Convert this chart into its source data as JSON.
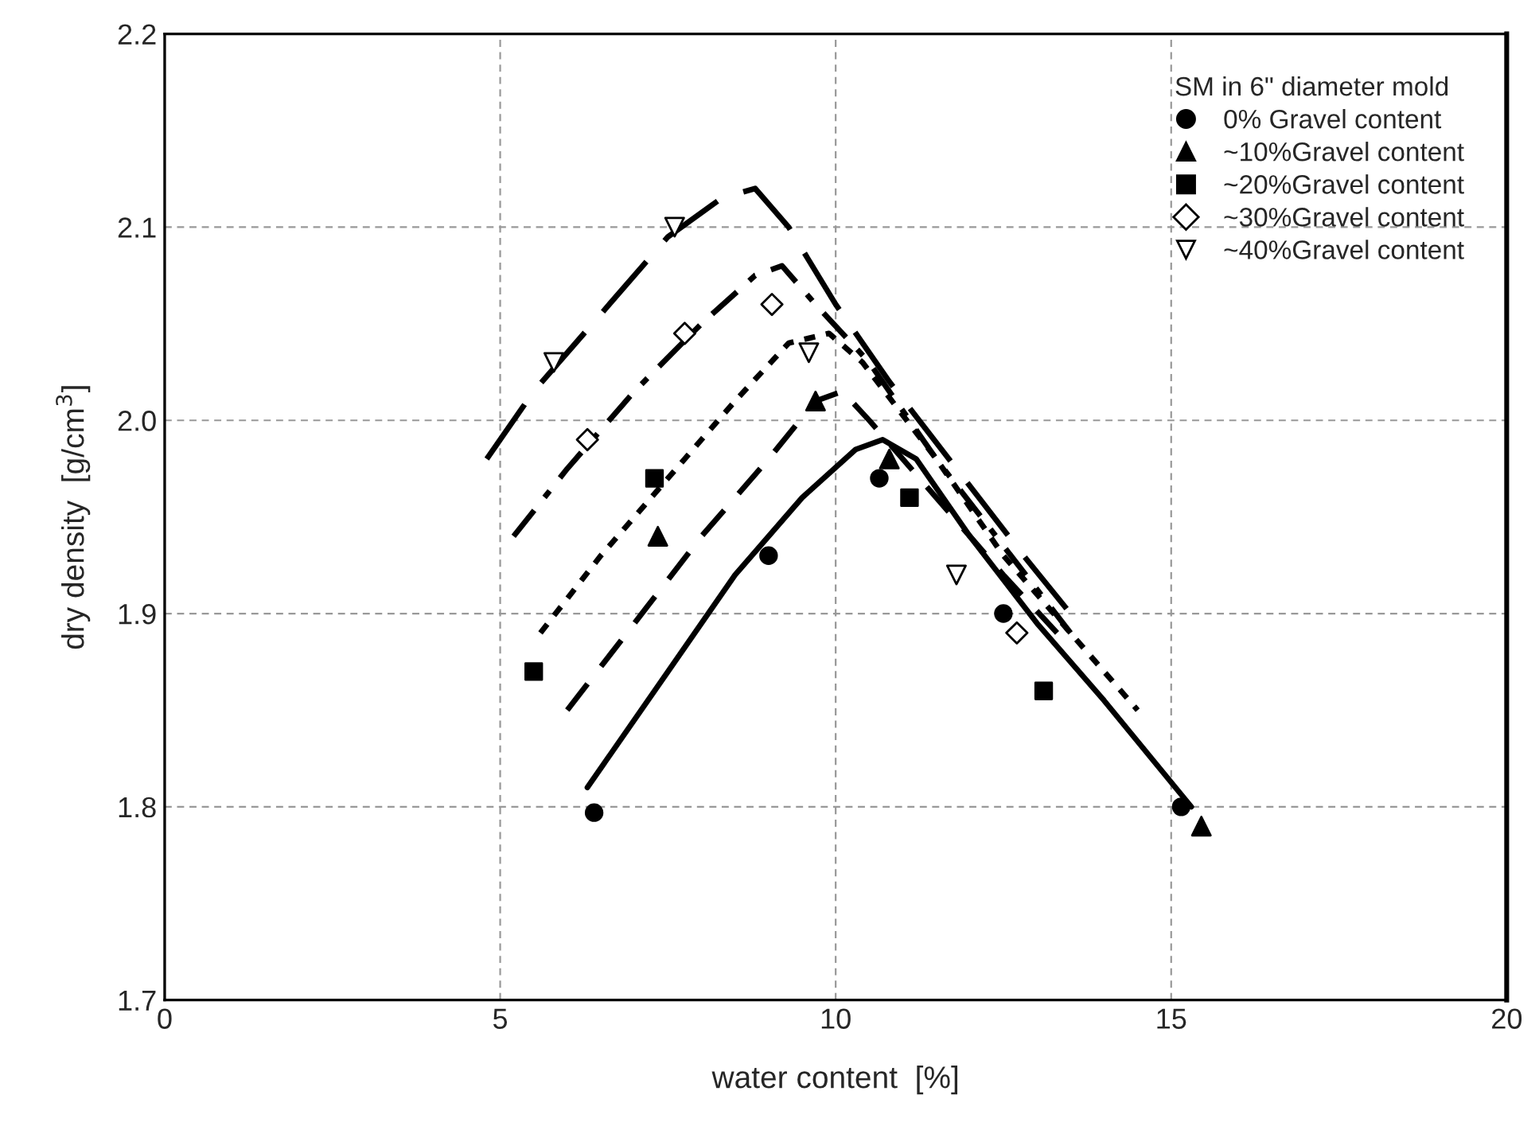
{
  "chart_data": {
    "type": "scatter",
    "xlabel": "water content  [%]",
    "ylabel": "dry density  [g/cm$^{3}$]",
    "legend_title": "SM in 6\" diameter mold",
    "legend": "top right",
    "grid": true,
    "xlim": [
      0,
      20
    ],
    "xticks": [
      0,
      5,
      10,
      15,
      20
    ],
    "ylim": [
      1.7,
      2.2
    ],
    "yticks": [
      1.7,
      1.8,
      1.9,
      {
        "value": 2.0,
        "label": "2.0"
      },
      2.1,
      2.2
    ],
    "series": [
      {
        "name": "0% Gravel content",
        "marker": "circle",
        "color": "#000000",
        "x": [
          6.4,
          9.0,
          10.65,
          12.5,
          15.15
        ],
        "values": [
          1.797,
          1.93,
          1.97,
          1.9,
          1.8
        ]
      },
      {
        "name": "~10%Gravel content",
        "marker": "triangle",
        "color": "#000000",
        "x": [
          7.35,
          9.7,
          10.8,
          15.45
        ],
        "values": [
          1.94,
          2.01,
          1.98,
          1.79
        ]
      },
      {
        "name": "~20%Gravel content",
        "marker": "square",
        "color": "#000000",
        "x": [
          5.5,
          7.3,
          11.1,
          13.1
        ],
        "values": [
          1.87,
          1.97,
          1.96,
          1.86
        ]
      },
      {
        "name": "~30%Gravel content",
        "marker": "diamond",
        "color": "#000000",
        "x": [
          6.3,
          7.75,
          9.05,
          12.7
        ],
        "values": [
          1.99,
          2.045,
          2.06,
          1.89
        ]
      },
      {
        "name": "~40%Gravel content",
        "marker": "triangle_down",
        "color": "#000000",
        "x": [
          5.8,
          7.6,
          9.6,
          11.8
        ],
        "values": [
          2.03,
          2.1,
          2.035,
          1.92
        ]
      },
      {
        "type": "line",
        "line_style": "solid",
        "color": "#000000",
        "x": [
          6.3,
          7.5,
          8.5,
          9.5,
          10.3,
          10.7,
          11.2,
          12.0,
          13.0,
          14.0,
          15.3
        ],
        "values": [
          1.81,
          1.87,
          1.92,
          1.96,
          1.985,
          1.99,
          1.98,
          1.94,
          1.895,
          1.855,
          1.8
        ]
      },
      {
        "type": "line",
        "line_style": "dashed",
        "color": "#000000",
        "x": [
          6.0,
          7.0,
          8.0,
          9.0,
          9.7,
          10.1,
          10.5,
          11.5,
          12.5,
          13.3
        ],
        "values": [
          1.85,
          1.895,
          1.94,
          1.98,
          2.01,
          2.015,
          2.0,
          1.96,
          1.92,
          1.89
        ]
      },
      {
        "type": "line",
        "line_style": "dotted",
        "color": "#000000",
        "x": [
          5.6,
          6.5,
          7.5,
          8.5,
          9.3,
          9.9,
          10.4,
          11.5,
          12.5,
          13.5,
          14.5
        ],
        "values": [
          1.89,
          1.93,
          1.97,
          2.01,
          2.04,
          2.045,
          2.03,
          1.98,
          1.93,
          1.89,
          1.85
        ]
      },
      {
        "type": "line",
        "line_style": "dashdot",
        "color": "#000000",
        "x": [
          5.2,
          6.0,
          7.0,
          8.0,
          8.8,
          9.2,
          9.7,
          10.5,
          11.5,
          12.5,
          13.5
        ],
        "values": [
          1.94,
          1.975,
          2.015,
          2.05,
          2.075,
          2.08,
          2.06,
          2.03,
          1.98,
          1.935,
          1.89
        ]
      },
      {
        "type": "line",
        "line_style": "longdash",
        "color": "#000000",
        "x": [
          4.8,
          5.5,
          6.5,
          7.5,
          8.3,
          8.8,
          9.3,
          10.0,
          10.8,
          11.8,
          12.8,
          13.5
        ],
        "values": [
          1.98,
          2.015,
          2.055,
          2.095,
          2.115,
          2.12,
          2.1,
          2.06,
          2.02,
          1.975,
          1.93,
          1.9
        ]
      }
    ]
  }
}
